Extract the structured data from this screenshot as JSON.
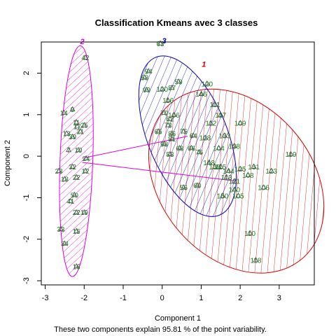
{
  "chart_data": {
    "type": "scatter",
    "title": "Classification Kmeans avec 3 classes",
    "xlabel": "Component 1",
    "ylabel": "Component 2",
    "footnote": "These two components explain 95.81 % of the point variability.",
    "xlim": [
      -3.1,
      3.9
    ],
    "ylim": [
      -3.1,
      2.75
    ],
    "xticks": [
      -3,
      -2,
      -1,
      0,
      1,
      2,
      3
    ],
    "yticks": [
      -3,
      -2,
      -1,
      0,
      1,
      2
    ],
    "grid": false,
    "colors": {
      "cluster1": "#dd0000",
      "cluster2": "#dd00dd",
      "cluster3": "#0000bb",
      "points": "#1f7a1f",
      "connector": "#dd00dd"
    },
    "clusters": [
      {
        "label": "1",
        "center": [
          1.9,
          -0.6
        ],
        "rx": 1.95,
        "ry": 2.45,
        "angle": 40,
        "color": "#dd0000",
        "label_pos": [
          1.07,
          2.15
        ]
      },
      {
        "label": "2",
        "center": [
          -2.2,
          -0.12
        ],
        "rx": 0.42,
        "ry": 2.78,
        "angle": -2,
        "color": "#dd00dd",
        "label_pos": [
          -2.05,
          2.7
        ]
      },
      {
        "label": "3",
        "center": [
          0.65,
          0.48
        ],
        "rx": 1.02,
        "ry": 2.05,
        "angle": 22,
        "color": "#0000bb",
        "label_pos": [
          0.05,
          2.72
        ]
      }
    ],
    "connectors": [
      {
        "from": [
          -2.05,
          -0.05
        ],
        "to": [
          0.65,
          0.48
        ]
      },
      {
        "from": [
          -2.05,
          -0.15
        ],
        "to": [
          1.9,
          -0.6
        ]
      }
    ],
    "points": [
      {
        "x": -1.97,
        "y": 2.38,
        "label": "42"
      },
      {
        "x": -2.52,
        "y": 1.05,
        "label": "14"
      },
      {
        "x": -2.3,
        "y": 1.13,
        "label": "9"
      },
      {
        "x": -2.2,
        "y": 0.82,
        "label": "11"
      },
      {
        "x": -2.18,
        "y": 0.72,
        "label": "17"
      },
      {
        "x": -2.0,
        "y": 0.75,
        "label": "25"
      },
      {
        "x": -2.45,
        "y": 0.55,
        "label": "13"
      },
      {
        "x": -2.3,
        "y": 0.47,
        "label": "39"
      },
      {
        "x": -2.1,
        "y": 0.6,
        "label": "21"
      },
      {
        "x": -2.4,
        "y": 0.15,
        "label": "7"
      },
      {
        "x": -2.15,
        "y": 0.15,
        "label": "10"
      },
      {
        "x": -1.95,
        "y": -0.05,
        "label": "24"
      },
      {
        "x": -2.65,
        "y": -0.35,
        "label": "23"
      },
      {
        "x": -2.3,
        "y": -0.25,
        "label": "32"
      },
      {
        "x": -1.97,
        "y": -0.35,
        "label": "12"
      },
      {
        "x": -2.5,
        "y": -0.55,
        "label": "18"
      },
      {
        "x": -2.2,
        "y": -0.5,
        "label": "22"
      },
      {
        "x": -2.25,
        "y": -0.93,
        "label": "50"
      },
      {
        "x": -2.35,
        "y": -1.08,
        "label": "41"
      },
      {
        "x": -2.2,
        "y": -1.35,
        "label": "22"
      },
      {
        "x": -2.0,
        "y": -1.35,
        "label": "19"
      },
      {
        "x": -2.6,
        "y": -1.75,
        "label": "33"
      },
      {
        "x": -2.2,
        "y": -1.8,
        "label": "15"
      },
      {
        "x": -2.5,
        "y": -2.1,
        "label": "34"
      },
      {
        "x": -2.2,
        "y": -2.65,
        "label": "16"
      },
      {
        "x": -0.05,
        "y": 2.72,
        "label": "63"
      },
      {
        "x": -0.35,
        "y": 2.05,
        "label": "94"
      },
      {
        "x": -0.45,
        "y": 1.9,
        "label": "58"
      },
      {
        "x": -0.4,
        "y": 1.6,
        "label": "99"
      },
      {
        "x": 0.0,
        "y": 1.62,
        "label": "120"
      },
      {
        "x": 0.25,
        "y": 1.65,
        "label": "87"
      },
      {
        "x": 0.42,
        "y": 1.8,
        "label": "59"
      },
      {
        "x": 0.15,
        "y": 1.35,
        "label": "116"
      },
      {
        "x": 0.05,
        "y": 1.05,
        "label": "70"
      },
      {
        "x": 0.3,
        "y": 1.0,
        "label": "106"
      },
      {
        "x": 0.2,
        "y": 0.9,
        "label": "62"
      },
      {
        "x": 0.15,
        "y": 0.75,
        "label": "73"
      },
      {
        "x": 0.25,
        "y": 0.55,
        "label": "86"
      },
      {
        "x": -0.1,
        "y": 0.6,
        "label": "65"
      },
      {
        "x": 0.55,
        "y": 0.6,
        "label": "75"
      },
      {
        "x": 0.8,
        "y": 0.5,
        "label": "64"
      },
      {
        "x": 0.05,
        "y": 0.3,
        "label": "98"
      },
      {
        "x": 0.45,
        "y": 0.2,
        "label": "68"
      },
      {
        "x": 0.75,
        "y": 0.2,
        "label": "66"
      },
      {
        "x": 0.2,
        "y": 0.05,
        "label": "83"
      },
      {
        "x": 0.95,
        "y": 0.1,
        "label": "76"
      },
      {
        "x": 0.55,
        "y": -0.75,
        "label": "56"
      },
      {
        "x": 0.9,
        "y": -0.7,
        "label": "60"
      },
      {
        "x": 0.25,
        "y": 0.42,
        "label": "81"
      },
      {
        "x": 1.15,
        "y": 1.75,
        "label": "120"
      },
      {
        "x": 1.0,
        "y": 1.5,
        "label": "146"
      },
      {
        "x": 1.35,
        "y": 1.25,
        "label": "111"
      },
      {
        "x": 1.5,
        "y": 1.0,
        "label": "117"
      },
      {
        "x": 1.25,
        "y": 0.8,
        "label": "112"
      },
      {
        "x": 1.6,
        "y": 0.5,
        "label": "133"
      },
      {
        "x": 1.1,
        "y": 0.45,
        "label": "128"
      },
      {
        "x": 2.0,
        "y": 0.8,
        "label": "109"
      },
      {
        "x": 1.45,
        "y": 0.2,
        "label": "104"
      },
      {
        "x": 1.85,
        "y": 0.25,
        "label": "138"
      },
      {
        "x": 1.2,
        "y": -0.15,
        "label": "148"
      },
      {
        "x": 1.35,
        "y": -0.25,
        "label": "135"
      },
      {
        "x": 1.5,
        "y": -0.25,
        "label": "115"
      },
      {
        "x": 1.7,
        "y": -0.35,
        "label": "144"
      },
      {
        "x": 2.0,
        "y": -0.3,
        "label": "125"
      },
      {
        "x": 1.65,
        "y": -0.5,
        "label": "113"
      },
      {
        "x": 1.85,
        "y": -0.6,
        "label": "121"
      },
      {
        "x": 1.85,
        "y": -0.8,
        "label": "140"
      },
      {
        "x": 1.55,
        "y": -0.95,
        "label": "150"
      },
      {
        "x": 1.95,
        "y": -0.95,
        "label": "105"
      },
      {
        "x": 2.35,
        "y": -0.25,
        "label": "131"
      },
      {
        "x": 2.2,
        "y": -0.45,
        "label": "108"
      },
      {
        "x": 2.8,
        "y": -0.35,
        "label": "123"
      },
      {
        "x": 2.6,
        "y": -0.75,
        "label": "106"
      },
      {
        "x": 3.3,
        "y": 0.05,
        "label": "119"
      },
      {
        "x": 2.25,
        "y": -1.85,
        "label": "110"
      },
      {
        "x": 2.4,
        "y": -2.5,
        "label": "118"
      }
    ]
  }
}
